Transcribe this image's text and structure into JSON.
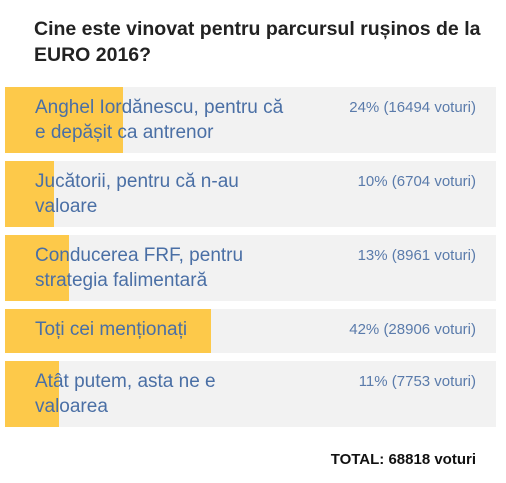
{
  "poll": {
    "question": "Cine este vinovat pentru parcursul rușinos de la EURO 2016?",
    "options": [
      {
        "label": "Anghel Iordănescu, pentru că e depășit ca antrenor",
        "percent": 24,
        "result_label": "24% (16494 voturi)"
      },
      {
        "label": "Jucătorii, pentru că n-au valoare",
        "percent": 10,
        "result_label": "10% (6704 voturi)"
      },
      {
        "label": "Conducerea FRF, pentru strategia falimentară",
        "percent": 13,
        "result_label": "13% (8961 voturi)"
      },
      {
        "label": "Toți cei menționați",
        "percent": 42,
        "result_label": "42% (28906 voturi)"
      },
      {
        "label": "Atât putem, asta ne e valoarea",
        "percent": 11,
        "result_label": "11% (7753 voturi)"
      }
    ],
    "total_label": "TOTAL: 68818 voturi"
  }
}
